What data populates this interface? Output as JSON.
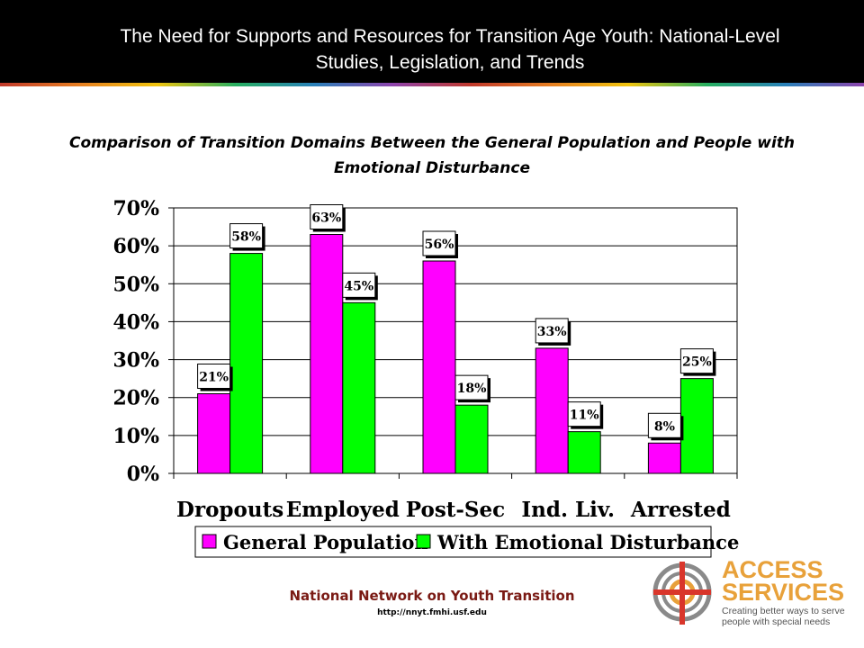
{
  "header": {
    "title_line1": "The Need for Supports and Resources for Transition Age Youth: National-Level",
    "title_line2": "Studies, Legislation, and Trends"
  },
  "chart_data": {
    "type": "bar",
    "title_line1": "Comparison of Transition Domains Between the General Population and People with",
    "title_line2": "Emotional Disturbance",
    "categories": [
      "Dropouts",
      "Employed",
      "Post-Sec",
      "Ind. Liv.",
      "Arrested"
    ],
    "series": [
      {
        "name": "General Population",
        "values": [
          21,
          63,
          56,
          33,
          8
        ],
        "color": "#ff00ff"
      },
      {
        "name": "With Emotional Disturbance",
        "values": [
          58,
          45,
          18,
          11,
          25
        ],
        "color": "#00ff00"
      }
    ],
    "value_suffix": "%",
    "ylim": [
      0,
      70
    ],
    "yticks": [
      0,
      10,
      20,
      30,
      40,
      50,
      60,
      70
    ],
    "ytick_labels": [
      "0%",
      "10%",
      "20%",
      "30%",
      "40%",
      "50%",
      "60%",
      "70%"
    ],
    "legend_position": "bottom",
    "grid": true
  },
  "footer": {
    "org": "National Network on Youth Transition",
    "url": "http://nnyt.fmhi.usf.edu"
  },
  "logo": {
    "name_line1": "ACCESS",
    "name_line2": "SERVICES",
    "tagline_line1": "Creating better ways to serve",
    "tagline_line2": "people with special needs",
    "colors": {
      "orange": "#e8a13a",
      "red": "#d9362b",
      "gray": "#8a8a8a"
    }
  }
}
